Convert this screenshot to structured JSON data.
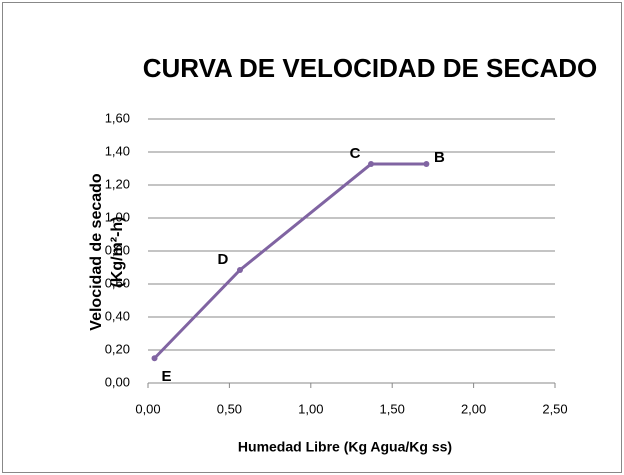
{
  "chart_data": {
    "type": "line",
    "title": "CURVA DE VELOCIDAD DE SECADO",
    "xlabel": "Humedad Libre (Kg Agua/Kg ss)",
    "ylabel": [
      "Velocidad de secado",
      "(Kg/m²-h)"
    ],
    "x": [
      0.04,
      0.565,
      1.37,
      1.71
    ],
    "series": [
      {
        "color": "#8064a2",
        "values": [
          0.15,
          0.685,
          1.327,
          1.327
        ]
      }
    ],
    "point_labels": [
      "E",
      "D",
      "C",
      "B"
    ],
    "xlim": [
      0,
      2.5
    ],
    "xticks": [
      {
        "value": 0,
        "label": "0,00"
      },
      {
        "value": 0.5,
        "label": "0,50"
      },
      {
        "value": 1,
        "label": "1,00"
      },
      {
        "value": 1.5,
        "label": "1,50"
      },
      {
        "value": 2,
        "label": "2,00"
      },
      {
        "value": 2.5,
        "label": "2,50"
      }
    ],
    "ylim": [
      0,
      1.6
    ],
    "yticks": [
      {
        "value": 0,
        "label": "0,00"
      },
      {
        "value": 0.2,
        "label": "0,20"
      },
      {
        "value": 0.4,
        "label": "0,40"
      },
      {
        "value": 0.6,
        "label": "0,60"
      },
      {
        "value": 0.8,
        "label": "0,80"
      },
      {
        "value": 1,
        "label": "1,00"
      },
      {
        "value": 1.2,
        "label": "1,20"
      },
      {
        "value": 1.4,
        "label": "1,40"
      },
      {
        "value": 1.6,
        "label": "1,60"
      }
    ],
    "grid": true
  }
}
